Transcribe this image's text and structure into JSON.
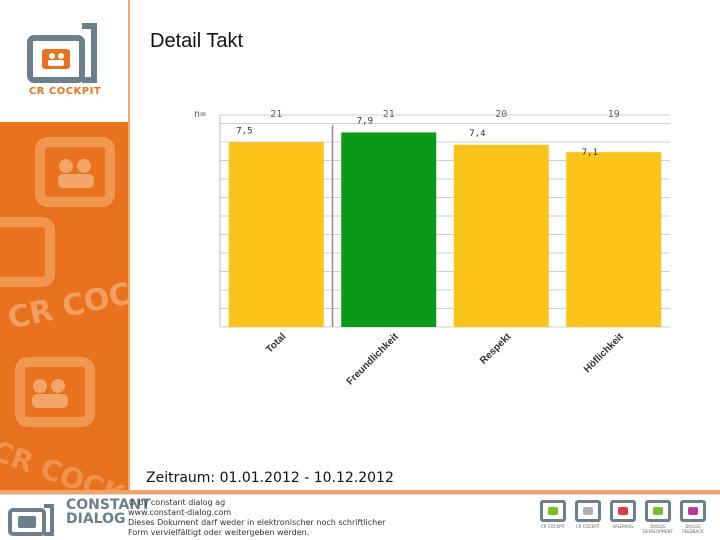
{
  "page": {
    "title": "Detail Takt",
    "timeframe": "Zeitraum: 01.01.2012 - 10.12.2012"
  },
  "sidebar": {
    "logo_text": "CR COCKPIT",
    "watermark_words": [
      "CR COCKPIT",
      "CR COCKPIT"
    ]
  },
  "chart_data": {
    "type": "bar",
    "categories": [
      "Total",
      "Freundlichkeit",
      "Respekt",
      "Höflichkeit"
    ],
    "values": [
      7.5,
      7.9,
      7.4,
      7.1
    ],
    "value_labels": [
      "7,5",
      "7,9",
      "7,4",
      "7,1"
    ],
    "n_label": "n=",
    "n_values": [
      "21",
      "21",
      "20",
      "19"
    ],
    "ylim": [
      0,
      8
    ],
    "grid": true,
    "colors": [
      "#fcc419",
      "#0a9a18",
      "#fcc419",
      "#fcc419"
    ],
    "title": "",
    "xlabel": "",
    "ylabel": ""
  },
  "footer": {
    "company_name": [
      "CONSTANT",
      "DIALOG"
    ],
    "copyright_lines": [
      "© by constant dialog ag",
      "www.constant-dialog.com",
      "Dieses Dokument darf weder in elektronischer noch schriftlicher",
      "Form vervielfältigt oder weitergeben werden."
    ],
    "brands": [
      {
        "label": "CR COCKPIT",
        "color": "#7dbd2a"
      },
      {
        "label": "CR COCKPIT",
        "color": "#b0b0b0"
      },
      {
        "label": "VALEMASS",
        "color": "#e03a4f"
      },
      {
        "label": "DIALOG DEVELOPMENT",
        "color": "#7dbd2a"
      },
      {
        "label": "DIALOG FEEDBACK",
        "color": "#b53a9a"
      }
    ]
  },
  "colors": {
    "brand_orange": "#e8721e",
    "brand_gray": "#6b7f8d"
  }
}
